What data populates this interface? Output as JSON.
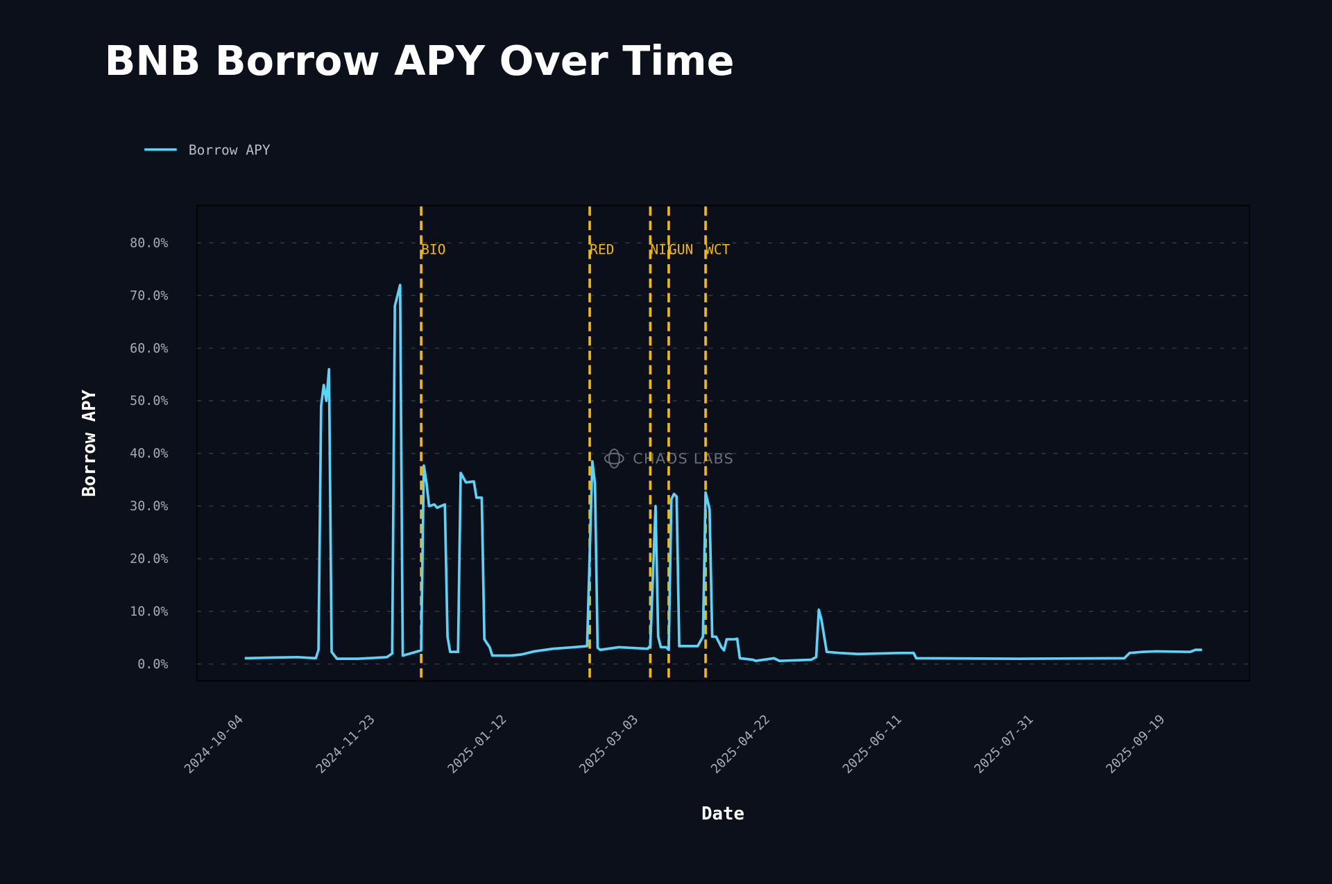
{
  "chart_data": {
    "type": "line",
    "title": "BNB Borrow APY Over Time",
    "xlabel": "Date",
    "ylabel": "Borrow APY",
    "legend": {
      "placement": "top-left",
      "entries": [
        "Borrow APY"
      ]
    },
    "watermark": "CHAOS LABS",
    "x_origin": "2024-10-04",
    "x_unit": "days since x_origin",
    "xlim_days": [
      -17,
      383
    ],
    "ylim": [
      -3,
      87
    ],
    "grid": true,
    "y_ticks": [
      0,
      10,
      20,
      30,
      40,
      50,
      60,
      70,
      80
    ],
    "y_tick_labels": [
      "0.0%",
      "10.0%",
      "20.0%",
      "30.0%",
      "40.0%",
      "50.0%",
      "60.0%",
      "70.0%",
      "80.0%"
    ],
    "x_ticks_days": [
      0,
      50,
      100,
      150,
      200,
      250,
      300,
      350
    ],
    "x_tick_labels": [
      "2024-10-04",
      "2024-11-23",
      "2025-01-12",
      "2025-03-03",
      "2025-04-22",
      "2025-06-11",
      "2025-07-31",
      "2025-09-19"
    ],
    "events": [
      {
        "label": "BIO",
        "day": 68
      },
      {
        "label": "RED",
        "day": 132
      },
      {
        "label": "NIL",
        "day": 155
      },
      {
        "label": "GUN",
        "day": 162
      },
      {
        "label": "WCT",
        "day": 176
      }
    ],
    "colors": {
      "line": "#5ad4f8",
      "event": "#f0b90b"
    },
    "series": [
      {
        "name": "Borrow APY",
        "points": [
          [
            1,
            1.1
          ],
          [
            9,
            1.2
          ],
          [
            21,
            1.3
          ],
          [
            28,
            1.1
          ],
          [
            29,
            2.7
          ],
          [
            30,
            49
          ],
          [
            31,
            53
          ],
          [
            32,
            50
          ],
          [
            33,
            56
          ],
          [
            34,
            2.3
          ],
          [
            36,
            1.0
          ],
          [
            44,
            1.0
          ],
          [
            55,
            1.3
          ],
          [
            57,
            2.0
          ],
          [
            58,
            68
          ],
          [
            60,
            72
          ],
          [
            61,
            1.6
          ],
          [
            66,
            2.3
          ],
          [
            68,
            2.6
          ],
          [
            69,
            37.7
          ],
          [
            70,
            34.5
          ],
          [
            71,
            30
          ],
          [
            73,
            30.3
          ],
          [
            74,
            29.7
          ],
          [
            77,
            30.3
          ],
          [
            78,
            5.2
          ],
          [
            79,
            2.3
          ],
          [
            82,
            2.3
          ],
          [
            83,
            36.3
          ],
          [
            85,
            34.5
          ],
          [
            88,
            34.7
          ],
          [
            89,
            31.6
          ],
          [
            91,
            31.6
          ],
          [
            92,
            4.7
          ],
          [
            94,
            3.2
          ],
          [
            95,
            1.6
          ],
          [
            102,
            1.6
          ],
          [
            106,
            1.8
          ],
          [
            111,
            2.4
          ],
          [
            118,
            2.9
          ],
          [
            126,
            3.2
          ],
          [
            131,
            3.4
          ],
          [
            133,
            38.5
          ],
          [
            134,
            34.2
          ],
          [
            135,
            3.1
          ],
          [
            136,
            2.7
          ],
          [
            143,
            3.2
          ],
          [
            154,
            2.9
          ],
          [
            155,
            3.5
          ],
          [
            157,
            30
          ],
          [
            158,
            5.2
          ],
          [
            159,
            3.2
          ],
          [
            161,
            3.2
          ],
          [
            162,
            2.7
          ],
          [
            163,
            31.3
          ],
          [
            164,
            32.3
          ],
          [
            165,
            31.8
          ],
          [
            166,
            3.4
          ],
          [
            173,
            3.4
          ],
          [
            175,
            5.2
          ],
          [
            176,
            32.6
          ],
          [
            177.5,
            29.4
          ],
          [
            178.5,
            5.2
          ],
          [
            180,
            5.2
          ],
          [
            182,
            3.2
          ],
          [
            183,
            2.6
          ],
          [
            184,
            4.7
          ],
          [
            187,
            4.7
          ],
          [
            188,
            4.8
          ],
          [
            189,
            1.1
          ],
          [
            194,
            0.8
          ],
          [
            195,
            0.6
          ],
          [
            202,
            1.1
          ],
          [
            204,
            0.6
          ],
          [
            216,
            0.8
          ],
          [
            218,
            1.3
          ],
          [
            219,
            10.3
          ],
          [
            220,
            8.4
          ],
          [
            222,
            2.3
          ],
          [
            227,
            2.1
          ],
          [
            234,
            1.9
          ],
          [
            250,
            2.1
          ],
          [
            255,
            2.1
          ],
          [
            256,
            1.1
          ],
          [
            295,
            1.0
          ],
          [
            335,
            1.1
          ],
          [
            337,
            2.1
          ],
          [
            342,
            2.3
          ],
          [
            347,
            2.4
          ],
          [
            360,
            2.3
          ],
          [
            362,
            2.7
          ],
          [
            364.5,
            2.7
          ]
        ]
      }
    ]
  }
}
